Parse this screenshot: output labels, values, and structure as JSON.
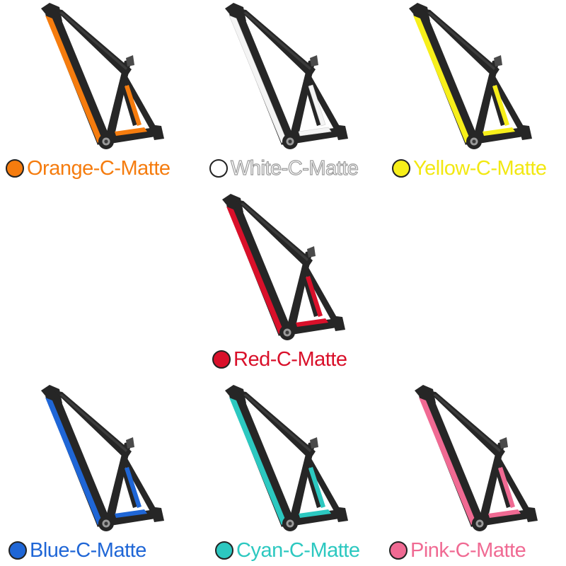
{
  "variants": [
    {
      "id": "orange",
      "label": "Orange-C-Matte",
      "accent": "#F57C0E",
      "text_color": "#F57C0E",
      "swatch": "#F57C0E",
      "outlined": false
    },
    {
      "id": "white",
      "label": "White-C-Matte",
      "accent": "#F4F4F4",
      "text_color": "#FFFFFF",
      "swatch": "#FFFFFF",
      "outlined": true
    },
    {
      "id": "yellow",
      "label": "Yellow-C-Matte",
      "accent": "#F7EF1A",
      "text_color": "#F2E812",
      "swatch": "#F7EF1A",
      "outlined": false
    },
    {
      "id": "red",
      "label": "Red-C-Matte",
      "accent": "#D9102A",
      "text_color": "#D9102A",
      "swatch": "#D9102A",
      "outlined": false
    },
    {
      "id": "blue",
      "label": "Blue-C-Matte",
      "accent": "#1F66D6",
      "text_color": "#1F66D6",
      "swatch": "#1F66D6",
      "outlined": false
    },
    {
      "id": "cyan",
      "label": "Cyan-C-Matte",
      "accent": "#2CC8C0",
      "text_color": "#2CC8C0",
      "swatch": "#2CC8C0",
      "outlined": false
    },
    {
      "id": "pink",
      "label": "Pink-C-Matte",
      "accent": "#F06A93",
      "text_color": "#F06A93",
      "swatch": "#F06A93",
      "outlined": false
    }
  ],
  "colors": {
    "frame_carbon": "#262626",
    "frame_highlight": "#4a4a4a",
    "background": "#FFFFFF"
  }
}
